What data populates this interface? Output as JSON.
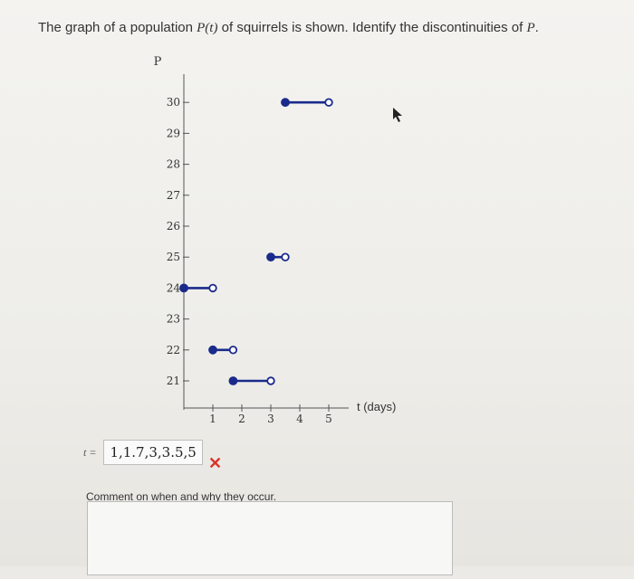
{
  "question": {
    "prefix": "The graph of a population ",
    "var": "P(t)",
    "middle": " of squirrels is shown. Identify the discontinuities of ",
    "var2": "P",
    "suffix": "."
  },
  "chart_data": {
    "type": "line",
    "ylabel": "P",
    "xlabel": "t (days)",
    "x_ticks": [
      1,
      2,
      3,
      4,
      5
    ],
    "y_ticks": [
      21,
      22,
      23,
      24,
      25,
      26,
      27,
      28,
      29,
      30
    ],
    "xlim": [
      0,
      5.5
    ],
    "ylim": [
      20.2,
      31.5
    ],
    "segments": [
      {
        "x0": 0,
        "x1": 1,
        "y": 24,
        "start": "closed",
        "end": "open"
      },
      {
        "x0": 1,
        "x1": 1.7,
        "y": 22,
        "start": "closed",
        "end": "open"
      },
      {
        "x0": 1.7,
        "x1": 3,
        "y": 21,
        "start": "closed",
        "end": "open"
      },
      {
        "x0": 3,
        "x1": 3.5,
        "y": 25,
        "start": "closed",
        "end": "open"
      },
      {
        "x0": 3.5,
        "x1": 5,
        "y": 30,
        "start": "closed",
        "end": "open"
      }
    ],
    "line_color": "#1a2a8c"
  },
  "answer": {
    "t_label": "t =",
    "value": "1,1.7,3,3.5,5",
    "status_color": "#d9332b"
  },
  "comment": {
    "label": "Comment on when and why they occur.",
    "value": ""
  }
}
